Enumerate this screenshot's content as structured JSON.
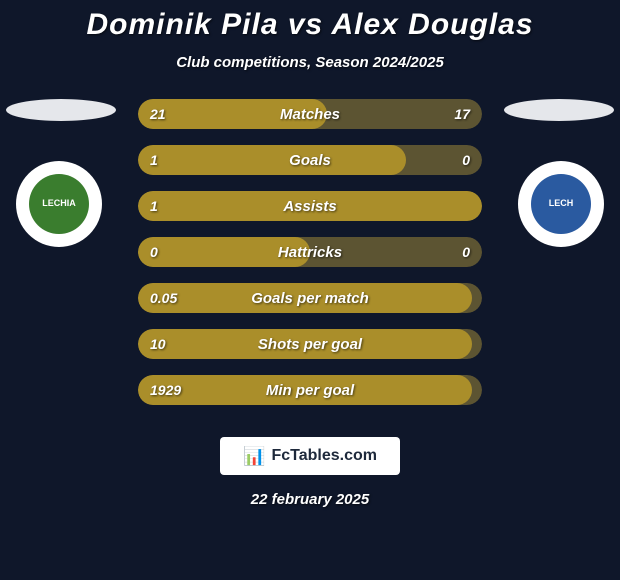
{
  "colors": {
    "background": "#0f172a",
    "title": "#ffffff",
    "subtitle": "#ffffff",
    "oval": "#e5e7eb",
    "crest_bg": "#ffffff",
    "bar_track": "#5c5432",
    "bar_fill": "#aa8e2a",
    "bar_text": "#ffffff",
    "logo_bg": "#ffffff",
    "logo_text": "#1e293b",
    "date": "#ffffff",
    "crest_left_inner": "#3a7d2e",
    "crest_left_text": "#ffffff",
    "crest_right_inner": "#2a5aa0",
    "crest_right_text": "#ffffff"
  },
  "typography": {
    "title_fontsize": 30,
    "subtitle_fontsize": 15,
    "bar_label_fontsize": 15,
    "bar_value_fontsize": 14,
    "logo_fontsize": 16,
    "date_fontsize": 15
  },
  "title": "Dominik Pila vs Alex Douglas",
  "subtitle": "Club competitions, Season 2024/2025",
  "players": {
    "left": {
      "name": "Dominik Pila",
      "crest_label": "LECHIA"
    },
    "right": {
      "name": "Alex Douglas",
      "crest_label": "LECH"
    }
  },
  "bars": [
    {
      "label": "Matches",
      "left": "21",
      "right": "17",
      "fill_pct": 55
    },
    {
      "label": "Goals",
      "left": "1",
      "right": "0",
      "fill_pct": 78
    },
    {
      "label": "Assists",
      "left": "1",
      "right": "",
      "fill_pct": 100
    },
    {
      "label": "Hattricks",
      "left": "0",
      "right": "0",
      "fill_pct": 50
    },
    {
      "label": "Goals per match",
      "left": "0.05",
      "right": "",
      "fill_pct": 97
    },
    {
      "label": "Shots per goal",
      "left": "10",
      "right": "",
      "fill_pct": 97
    },
    {
      "label": "Min per goal",
      "left": "1929",
      "right": "",
      "fill_pct": 97
    }
  ],
  "logo": {
    "glyph": "📊",
    "text": "FcTables.com"
  },
  "date": "22 february 2025"
}
